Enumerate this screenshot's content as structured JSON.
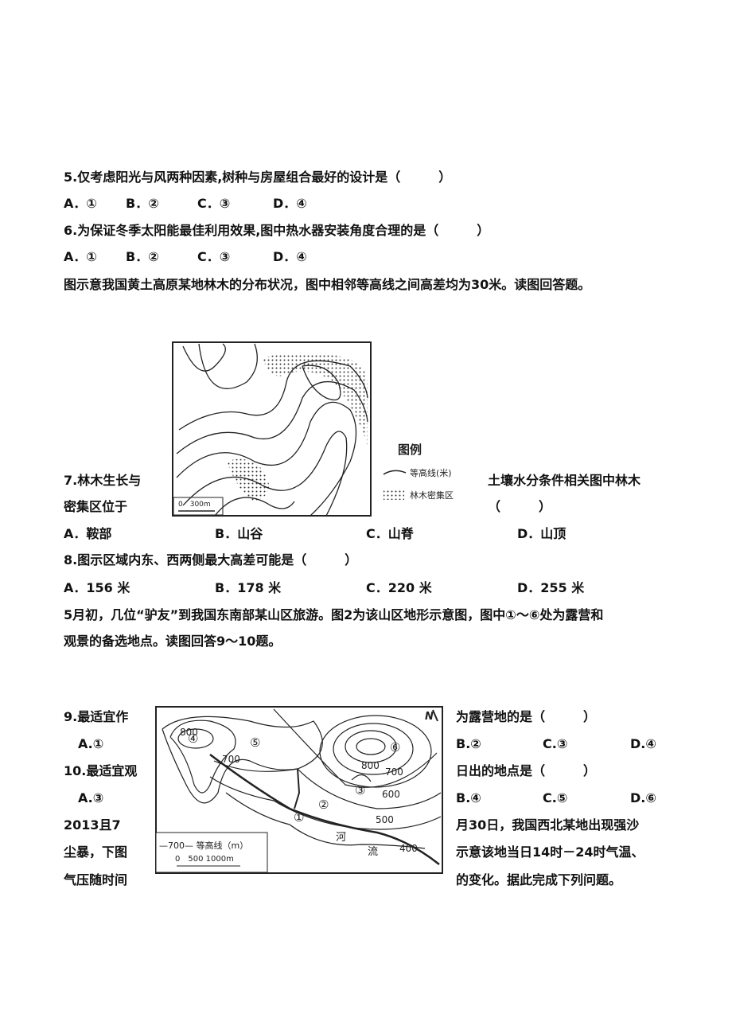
{
  "q5": {
    "stem": "5.仅考虑阳光与风两种因素,树种与房屋组合最好的设计是（　　　）",
    "options": [
      "A．①",
      "B．②",
      "C．③",
      "D．④"
    ]
  },
  "q6": {
    "stem": "6.为保证冬季太阳能最佳利用效果,图中热水器安装角度合理的是（　　　）",
    "options": [
      "A．①",
      "B．②",
      "C．③",
      "D．④"
    ]
  },
  "intro1": "图示意我国黄土高原某地林木的分布状况，图中相邻等高线之间高差均为30米。读图回答题。",
  "figure1": {
    "legend_title": "图例",
    "legend_items": [
      "等高线(米)",
      "林木密集区"
    ],
    "scale": "0　300m"
  },
  "q7": {
    "stem_left": "7.林木生长与",
    "stem_right": "土壤水分条件相关图中林木",
    "stem_line2": "密集区位于",
    "blank": "（　　　）",
    "options": [
      "A．鞍部",
      "B．山谷",
      "C．山脊",
      "D．山顶"
    ]
  },
  "q8": {
    "stem": "8.图示区域内东、西两侧最大高差可能是（　　　）",
    "options": [
      "A．156 米",
      "B．178 米",
      "C．220 米",
      "D．255 米"
    ]
  },
  "intro2": [
    "5月初，几位“驴友”到我国东南部某山区旅游。图2为该山区地形示意图，图中①～⑥处为露营和",
    "观景的备选地点。读图回答9～10题。"
  ],
  "figure2": {
    "north": "N",
    "contour_labels": [
      "800",
      "700",
      "800",
      "700",
      "600",
      "500",
      "400"
    ],
    "points": [
      "①",
      "②",
      "③",
      "④",
      "⑤",
      "⑥"
    ],
    "river": [
      "河",
      "流"
    ],
    "legend": "—700— 等高线（m）",
    "scale": "0　500 1000m"
  },
  "left_column": [
    "9.最适宜作",
    "A.①",
    "10.最适宜观",
    "A.③",
    "2013且7",
    "尘暴，下图",
    "气压随时间"
  ],
  "right_column": [
    "为露营地的是（　　　）",
    "B.②",
    "C.③",
    "D.④",
    "日出的地点是（　　　）",
    "B.④",
    "C.⑤",
    "D.⑥",
    "月30日，我国西北某地出现强沙",
    "示意该地当日14时－24时气温、",
    "的变化。据此完成下列问题。"
  ]
}
